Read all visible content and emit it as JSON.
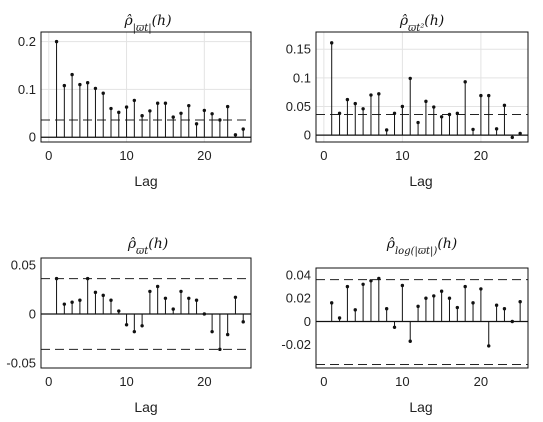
{
  "chart_data": [
    {
      "type": "stem",
      "title": "ρ̂_{|ϖt|}(h)",
      "xlabel": "Lag",
      "ylabel": "",
      "xlim": [
        -1,
        26
      ],
      "ylim": [
        -0.01,
        0.22
      ],
      "xticks": [
        0,
        10,
        20
      ],
      "yticks": [
        0,
        0.1,
        0.2
      ],
      "ytick_labels": [
        "0",
        "0.1",
        "0.2"
      ],
      "bands": [
        0.036
      ],
      "grid": true,
      "lags": [
        1,
        2,
        3,
        4,
        5,
        6,
        7,
        8,
        9,
        10,
        11,
        12,
        13,
        14,
        15,
        16,
        17,
        18,
        19,
        20,
        21,
        22,
        23,
        24,
        25
      ],
      "values": [
        0.2,
        0.108,
        0.131,
        0.11,
        0.114,
        0.102,
        0.092,
        0.06,
        0.052,
        0.063,
        0.077,
        0.045,
        0.055,
        0.071,
        0.071,
        0.042,
        0.05,
        0.066,
        0.028,
        0.056,
        0.049,
        0.036,
        0.064,
        0.005,
        0.017
      ]
    },
    {
      "type": "stem",
      "title": "ρ̂_{ϖt²}(h)",
      "xlabel": "Lag",
      "ylabel": "",
      "xlim": [
        -1,
        26
      ],
      "ylim": [
        -0.012,
        0.18
      ],
      "xticks": [
        0,
        10,
        20
      ],
      "yticks": [
        0,
        0.05,
        0.1,
        0.15
      ],
      "ytick_labels": [
        "0",
        "0.05",
        "0.1",
        "0.15"
      ],
      "bands": [
        0.036
      ],
      "grid": true,
      "lags": [
        1,
        2,
        3,
        4,
        5,
        6,
        7,
        8,
        9,
        10,
        11,
        12,
        13,
        14,
        15,
        16,
        17,
        18,
        19,
        20,
        21,
        22,
        23,
        24,
        25
      ],
      "values": [
        0.161,
        0.038,
        0.062,
        0.055,
        0.046,
        0.07,
        0.072,
        0.009,
        0.038,
        0.05,
        0.099,
        0.022,
        0.059,
        0.049,
        0.032,
        0.036,
        0.038,
        0.093,
        0.01,
        0.069,
        0.069,
        0.011,
        0.052,
        -0.004,
        0.003
      ]
    },
    {
      "type": "stem",
      "title": "ρ̂_{ϖt}(h)",
      "xlabel": "Lag",
      "ylabel": "",
      "xlim": [
        -1,
        26
      ],
      "ylim": [
        -0.055,
        0.057
      ],
      "xticks": [
        0,
        10,
        20
      ],
      "yticks": [
        -0.05,
        0,
        0.05
      ],
      "ytick_labels": [
        "-0.05",
        "0",
        "0.05"
      ],
      "bands": [
        0.036,
        -0.036
      ],
      "grid": false,
      "lags": [
        1,
        2,
        3,
        4,
        5,
        6,
        7,
        8,
        9,
        10,
        11,
        12,
        13,
        14,
        15,
        16,
        17,
        18,
        19,
        20,
        21,
        22,
        23,
        24,
        25
      ],
      "values": [
        0.036,
        0.01,
        0.012,
        0.014,
        0.036,
        0.022,
        0.019,
        0.014,
        0.003,
        -0.011,
        -0.018,
        -0.012,
        0.023,
        0.028,
        0.016,
        0.005,
        0.023,
        0.016,
        0.014,
        0.0,
        -0.018,
        -0.036,
        -0.021,
        0.017,
        -0.008
      ]
    },
    {
      "type": "stem",
      "title": "ρ̂_{log(|ϖt|)}(h)",
      "xlabel": "Lag",
      "ylabel": "",
      "xlim": [
        -1,
        26
      ],
      "ylim": [
        -0.04,
        0.046
      ],
      "xticks": [
        0,
        10,
        20
      ],
      "yticks": [
        -0.02,
        0,
        0.02,
        0.04
      ],
      "ytick_labels": [
        "-0.02",
        "0",
        "0.02",
        "0.04"
      ],
      "bands": [
        0.036,
        -0.037
      ],
      "grid": false,
      "lags": [
        1,
        2,
        3,
        4,
        5,
        6,
        7,
        8,
        9,
        10,
        11,
        12,
        13,
        14,
        15,
        16,
        17,
        18,
        19,
        20,
        21,
        22,
        23,
        24,
        25
      ],
      "values": [
        0.016,
        0.003,
        0.03,
        0.01,
        0.032,
        0.035,
        0.037,
        0.011,
        -0.005,
        0.031,
        -0.017,
        0.013,
        0.02,
        0.022,
        0.026,
        0.02,
        0.012,
        0.03,
        0.016,
        0.028,
        -0.021,
        0.014,
        0.011,
        0.0,
        0.017
      ]
    }
  ]
}
